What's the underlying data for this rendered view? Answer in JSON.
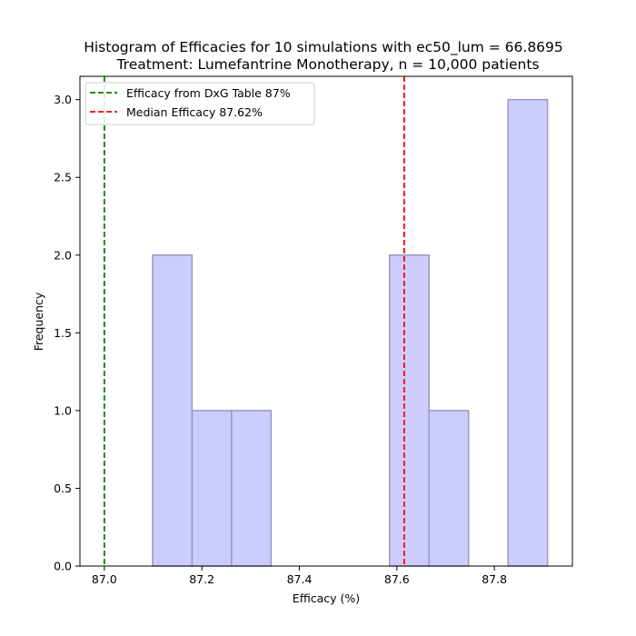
{
  "chart_data": {
    "type": "bar",
    "title_line1": "Histogram of Efficacies for 10 simulations with ec50_lum = 66.8695",
    "title_line2": "Treatment: Lumefantrine Monotherapy, n = 10,000 patients",
    "xlabel": "Efficacy (%)",
    "ylabel": "Frequency",
    "xlim": [
      86.95,
      87.96
    ],
    "ylim": [
      0,
      3.15
    ],
    "x_ticks": [
      {
        "value": 87.0,
        "label": "87.0"
      },
      {
        "value": 87.2,
        "label": "87.2"
      },
      {
        "value": 87.4,
        "label": "87.4"
      },
      {
        "value": 87.6,
        "label": "87.6"
      },
      {
        "value": 87.8,
        "label": "87.8"
      }
    ],
    "y_ticks": [
      {
        "value": 0.0,
        "label": "0.0"
      },
      {
        "value": 0.5,
        "label": "0.5"
      },
      {
        "value": 1.0,
        "label": "1.0"
      },
      {
        "value": 1.5,
        "label": "1.5"
      },
      {
        "value": 2.0,
        "label": "2.0"
      },
      {
        "value": 2.5,
        "label": "2.5"
      },
      {
        "value": 3.0,
        "label": "3.0"
      }
    ],
    "bins": [
      {
        "x0": 87.099,
        "x1": 87.18,
        "count": 2
      },
      {
        "x0": 87.18,
        "x1": 87.261,
        "count": 1
      },
      {
        "x0": 87.261,
        "x1": 87.342,
        "count": 1
      },
      {
        "x0": 87.342,
        "x1": 87.423,
        "count": 0
      },
      {
        "x0": 87.423,
        "x1": 87.504,
        "count": 0
      },
      {
        "x0": 87.504,
        "x1": 87.585,
        "count": 0
      },
      {
        "x0": 87.585,
        "x1": 87.666,
        "count": 2
      },
      {
        "x0": 87.666,
        "x1": 87.747,
        "count": 1
      },
      {
        "x0": 87.747,
        "x1": 87.828,
        "count": 0
      },
      {
        "x0": 87.828,
        "x1": 87.909,
        "count": 3
      }
    ],
    "reference_lines": [
      {
        "name": "Efficacy from DxG Table 87%",
        "x": 87.0,
        "color": "#008000",
        "style": "dashed"
      },
      {
        "name": "Median Efficacy 87.62%",
        "x": 87.615,
        "color": "#ff0000",
        "style": "dashed"
      }
    ],
    "bar_fill": "#ccccff",
    "bar_edge": "#9999bb",
    "grid": false,
    "legend_position": "top-left"
  }
}
